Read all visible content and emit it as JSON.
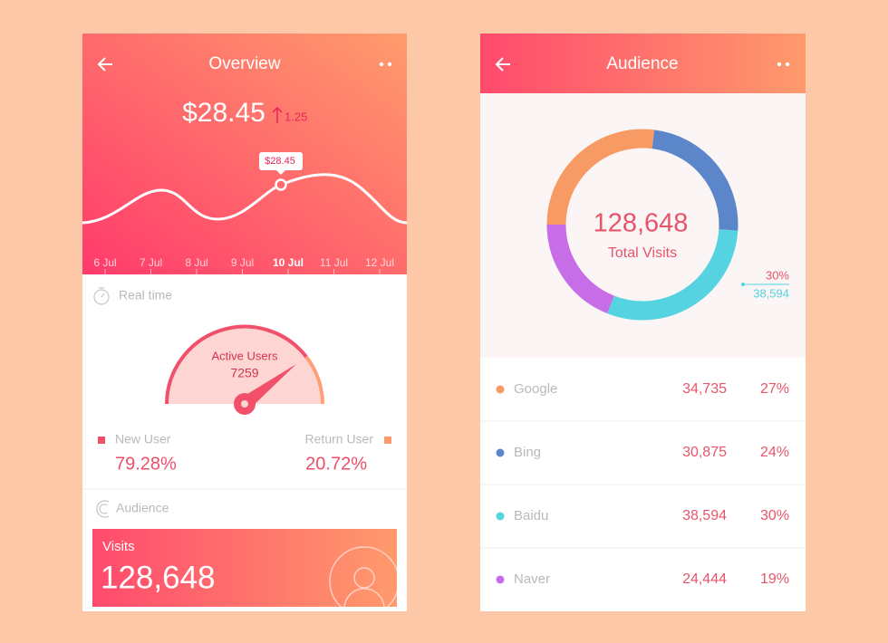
{
  "overview_screen": {
    "title": "Overview",
    "price": "$28.45",
    "change": "1.25",
    "tooltip": "$28.45",
    "dates": [
      "6 Jul",
      "7 Jul",
      "8 Jul",
      "9 Jul",
      "10 Jul",
      "11 Jul",
      "12 Jul"
    ],
    "realtime": {
      "heading": "Real time",
      "active_users_label": "Active Users",
      "active_users": "7259",
      "new_user_label": "New User",
      "new_user_share": "79.28%",
      "return_user_label": "Return User",
      "return_user_share": "20.72%"
    },
    "audience": {
      "heading": "Audience",
      "visits_label": "Visits",
      "visits": "128,648"
    }
  },
  "audience_screen": {
    "title": "Audience",
    "total": "128,648",
    "total_label": "Total Visits",
    "callout_share": "30%",
    "callout_visits": "38,594",
    "sources": [
      {
        "name": "Google",
        "visits": "34,735",
        "share": 27,
        "share_label": "27%",
        "color": "#f89a63"
      },
      {
        "name": "Bing",
        "visits": "30,875",
        "share": 24,
        "share_label": "24%",
        "color": "#5b86c9"
      },
      {
        "name": "Baidu",
        "visits": "38,594",
        "share": 30,
        "share_label": "30%",
        "color": "#55d3e0"
      },
      {
        "name": "Naver",
        "visits": "24,444",
        "share": 19,
        "share_label": "19%",
        "color": "#c76de8"
      }
    ]
  }
}
